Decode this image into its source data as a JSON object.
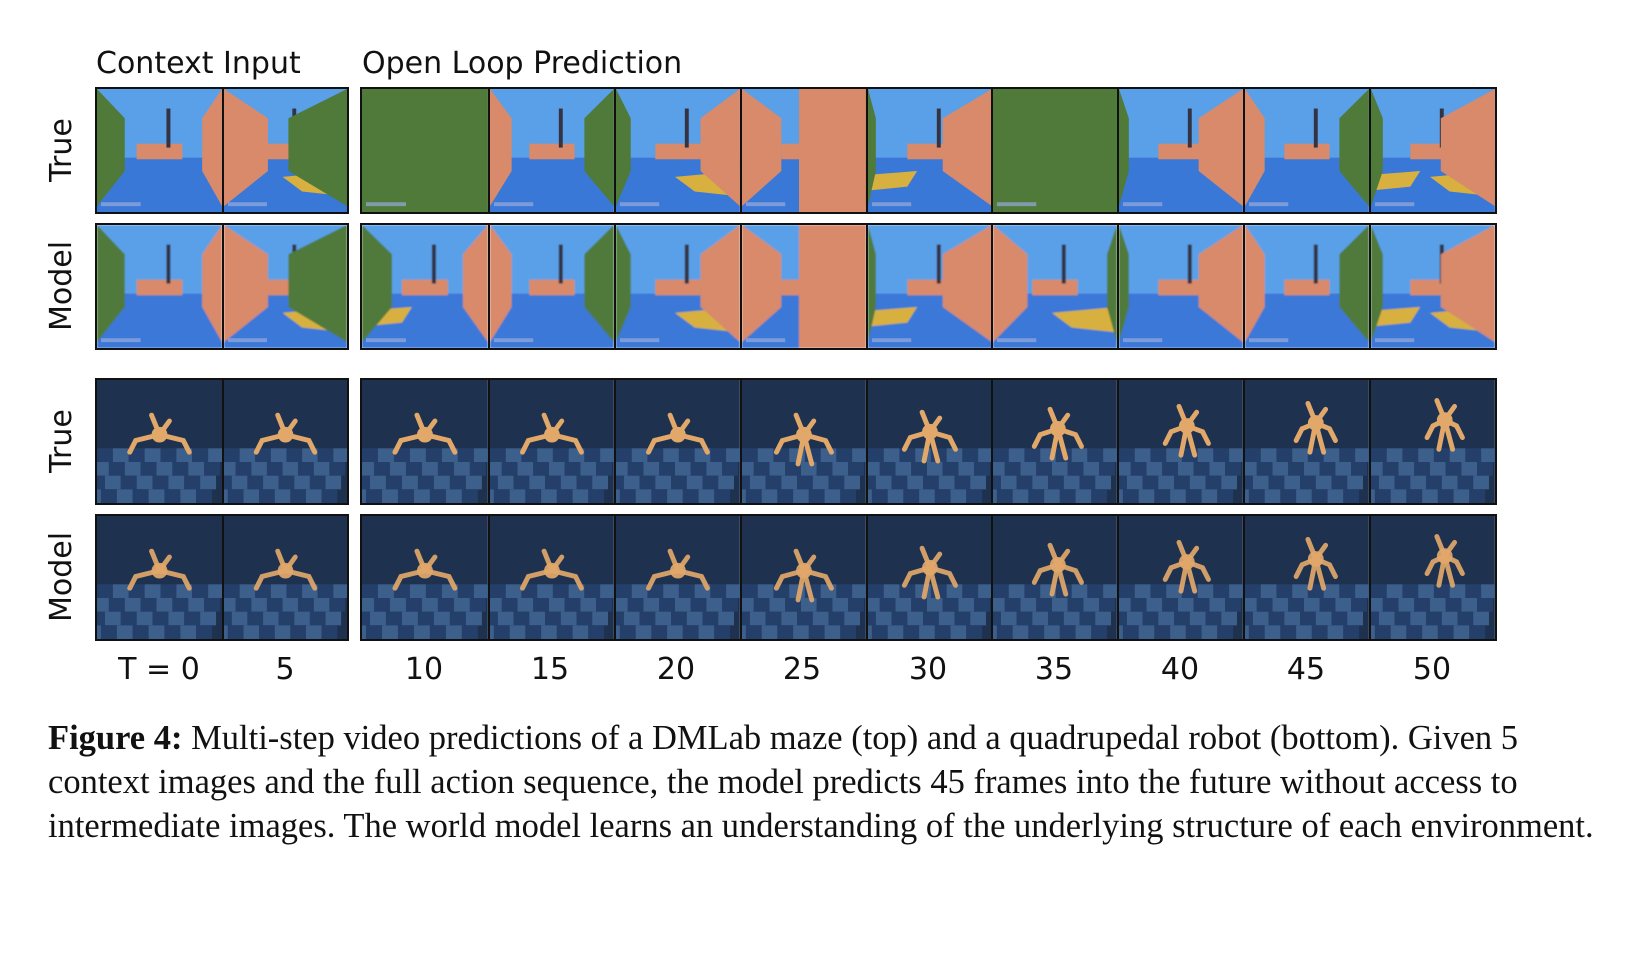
{
  "headers": {
    "context": "Context Input",
    "open_loop": "Open Loop Prediction"
  },
  "row_labels": [
    "True",
    "Model",
    "True",
    "Model"
  ],
  "time_label_prefix": "T = ",
  "time_steps": [
    "0",
    "5",
    "10",
    "15",
    "20",
    "25",
    "30",
    "35",
    "40",
    "45",
    "50"
  ],
  "caption": {
    "label": "Figure 4:",
    "text": " Multi-step video predictions of a DMLab maze (top) and a quadrupedal robot (bottom). Given 5 context images and the full action sequence, the model predicts 45 frames into the future without access to intermediate images. The world model learns an understanding of the underlying structure of each environment."
  },
  "colors": {
    "maze_sky": "#5aa0e8",
    "maze_floor": "#3a78d8",
    "maze_wall_brick": "#d88a6a",
    "maze_wall_green": "#4f7a3a",
    "maze_sand": "#d8b040",
    "robot_bg": "#1e3250",
    "robot_floor_dark": "#24406a",
    "robot_floor_light": "#3d5f8c",
    "robot_body": "#e2a86a"
  }
}
